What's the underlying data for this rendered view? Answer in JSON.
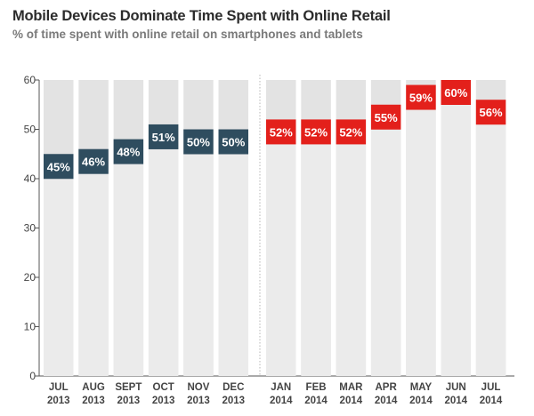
{
  "header": {
    "title": "Mobile Devices Dominate Time Spent with Online Retail",
    "subtitle": "% of time spent with online retail on smartphones and tablets"
  },
  "colors": {
    "bar_background": "#e3e3e3",
    "series_2013": "#2f4d5f",
    "series_2014": "#e3201b",
    "axis": "#555555",
    "divider": "#b5b5b5"
  },
  "chart_data": {
    "type": "bar",
    "title": "Mobile Devices Dominate Time Spent with Online Retail",
    "subtitle": "% of time spent with online retail on smartphones and tablets",
    "xlabel": "",
    "ylabel": "",
    "ylim": [
      0,
      60
    ],
    "yticks": [
      0,
      10,
      20,
      30,
      40,
      50,
      60
    ],
    "grid": false,
    "categories": [
      {
        "month": "JUL",
        "year": "2013"
      },
      {
        "month": "AUG",
        "year": "2013"
      },
      {
        "month": "SEPT",
        "year": "2013"
      },
      {
        "month": "OCT",
        "year": "2013"
      },
      {
        "month": "NOV",
        "year": "2013"
      },
      {
        "month": "DEC",
        "year": "2013"
      },
      {
        "month": "JAN",
        "year": "2014"
      },
      {
        "month": "FEB",
        "year": "2014"
      },
      {
        "month": "MAR",
        "year": "2014"
      },
      {
        "month": "APR",
        "year": "2014"
      },
      {
        "month": "MAY",
        "year": "2014"
      },
      {
        "month": "JUN",
        "year": "2014"
      },
      {
        "month": "JUL",
        "year": "2014"
      }
    ],
    "values": [
      45,
      46,
      48,
      51,
      50,
      50,
      52,
      52,
      52,
      55,
      59,
      60,
      56
    ],
    "labels": [
      "45%",
      "46%",
      "48%",
      "51%",
      "50%",
      "50%",
      "52%",
      "52%",
      "52%",
      "55%",
      "59%",
      "60%",
      "56%"
    ],
    "series": [
      {
        "name": "2013",
        "indices": [
          0,
          1,
          2,
          3,
          4,
          5
        ]
      },
      {
        "name": "2014",
        "indices": [
          6,
          7,
          8,
          9,
          10,
          11,
          12
        ]
      }
    ]
  }
}
